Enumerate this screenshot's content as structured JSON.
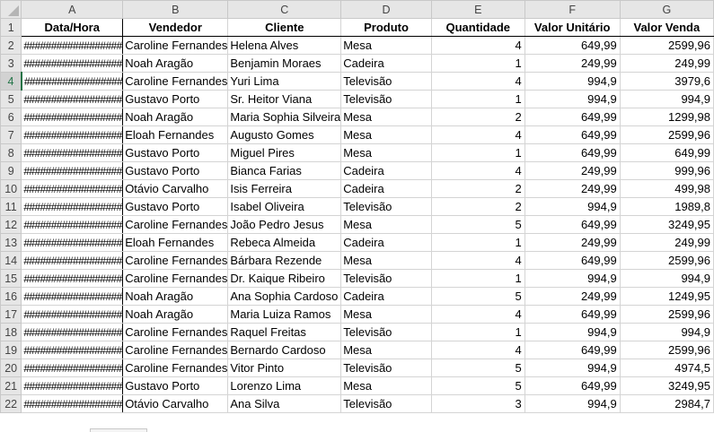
{
  "column_letters": [
    "A",
    "B",
    "C",
    "D",
    "E",
    "F",
    "G"
  ],
  "header": [
    "Data/Hora",
    "Vendedor",
    "Cliente",
    "Produto",
    "Quantidade",
    "Valor Unitário",
    "Valor Venda"
  ],
  "hash_text": "##################",
  "rows": [
    {
      "num": "2",
      "vendedor": "Caroline Fernandes",
      "cliente": "Helena Alves",
      "produto": "Mesa",
      "quantidade": "4",
      "valor_unitario": "649,99",
      "valor_venda": "2599,96"
    },
    {
      "num": "3",
      "vendedor": "Noah Aragão",
      "cliente": "Benjamin Moraes",
      "produto": "Cadeira",
      "quantidade": "1",
      "valor_unitario": "249,99",
      "valor_venda": "249,99"
    },
    {
      "num": "4",
      "vendedor": "Caroline Fernandes",
      "cliente": "Yuri Lima",
      "produto": "Televisão",
      "quantidade": "4",
      "valor_unitario": "994,9",
      "valor_venda": "3979,6"
    },
    {
      "num": "5",
      "vendedor": "Gustavo Porto",
      "cliente": "Sr. Heitor Viana",
      "produto": "Televisão",
      "quantidade": "1",
      "valor_unitario": "994,9",
      "valor_venda": "994,9"
    },
    {
      "num": "6",
      "vendedor": "Noah Aragão",
      "cliente": "Maria Sophia Silveira",
      "produto": "Mesa",
      "quantidade": "2",
      "valor_unitario": "649,99",
      "valor_venda": "1299,98"
    },
    {
      "num": "7",
      "vendedor": "Eloah Fernandes",
      "cliente": "Augusto Gomes",
      "produto": "Mesa",
      "quantidade": "4",
      "valor_unitario": "649,99",
      "valor_venda": "2599,96"
    },
    {
      "num": "8",
      "vendedor": "Gustavo Porto",
      "cliente": "Miguel Pires",
      "produto": "Mesa",
      "quantidade": "1",
      "valor_unitario": "649,99",
      "valor_venda": "649,99"
    },
    {
      "num": "9",
      "vendedor": "Gustavo Porto",
      "cliente": "Bianca Farias",
      "produto": "Cadeira",
      "quantidade": "4",
      "valor_unitario": "249,99",
      "valor_venda": "999,96"
    },
    {
      "num": "10",
      "vendedor": "Otávio Carvalho",
      "cliente": "Isis Ferreira",
      "produto": "Cadeira",
      "quantidade": "2",
      "valor_unitario": "249,99",
      "valor_venda": "499,98"
    },
    {
      "num": "11",
      "vendedor": "Gustavo Porto",
      "cliente": "Isabel Oliveira",
      "produto": "Televisão",
      "quantidade": "2",
      "valor_unitario": "994,9",
      "valor_venda": "1989,8"
    },
    {
      "num": "12",
      "vendedor": "Caroline Fernandes",
      "cliente": "João Pedro Jesus",
      "produto": "Mesa",
      "quantidade": "5",
      "valor_unitario": "649,99",
      "valor_venda": "3249,95"
    },
    {
      "num": "13",
      "vendedor": "Eloah Fernandes",
      "cliente": "Rebeca Almeida",
      "produto": "Cadeira",
      "quantidade": "1",
      "valor_unitario": "249,99",
      "valor_venda": "249,99"
    },
    {
      "num": "14",
      "vendedor": "Caroline Fernandes",
      "cliente": "Bárbara Rezende",
      "produto": "Mesa",
      "quantidade": "4",
      "valor_unitario": "649,99",
      "valor_venda": "2599,96"
    },
    {
      "num": "15",
      "vendedor": "Caroline Fernandes",
      "cliente": "Dr. Kaique Ribeiro",
      "produto": "Televisão",
      "quantidade": "1",
      "valor_unitario": "994,9",
      "valor_venda": "994,9"
    },
    {
      "num": "16",
      "vendedor": "Noah Aragão",
      "cliente": "Ana Sophia Cardoso",
      "produto": "Cadeira",
      "quantidade": "5",
      "valor_unitario": "249,99",
      "valor_venda": "1249,95"
    },
    {
      "num": "17",
      "vendedor": "Noah Aragão",
      "cliente": "Maria Luiza Ramos",
      "produto": "Mesa",
      "quantidade": "4",
      "valor_unitario": "649,99",
      "valor_venda": "2599,96"
    },
    {
      "num": "18",
      "vendedor": "Caroline Fernandes",
      "cliente": "Raquel Freitas",
      "produto": "Televisão",
      "quantidade": "1",
      "valor_unitario": "994,9",
      "valor_venda": "994,9"
    },
    {
      "num": "19",
      "vendedor": "Caroline Fernandes",
      "cliente": "Bernardo Cardoso",
      "produto": "Mesa",
      "quantidade": "4",
      "valor_unitario": "649,99",
      "valor_venda": "2599,96"
    },
    {
      "num": "20",
      "vendedor": "Caroline Fernandes",
      "cliente": "Vitor Pinto",
      "produto": "Televisão",
      "quantidade": "5",
      "valor_unitario": "994,9",
      "valor_venda": "4974,5"
    },
    {
      "num": "21",
      "vendedor": "Gustavo Porto",
      "cliente": "Lorenzo Lima",
      "produto": "Mesa",
      "quantidade": "5",
      "valor_unitario": "649,99",
      "valor_venda": "3249,95"
    },
    {
      "num": "22",
      "vendedor": "Otávio Carvalho",
      "cliente": "Ana Silva",
      "produto": "Televisão",
      "quantidade": "3",
      "valor_unitario": "994,9",
      "valor_venda": "2984,7"
    }
  ],
  "colors": {
    "header_bg": "#e6e6e6",
    "selection_accent": "#217346",
    "gridline": "#d4d4d4"
  }
}
